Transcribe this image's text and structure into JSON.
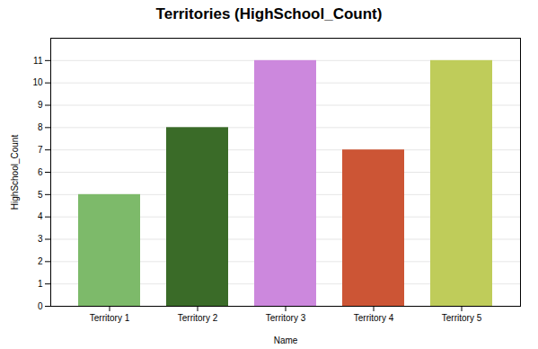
{
  "chart_data": {
    "type": "bar",
    "title": "Territories (HighSchool_Count)",
    "xlabel": "Name",
    "ylabel": "HighSchool_Count",
    "categories": [
      "Territory 1",
      "Territory 2",
      "Territory 3",
      "Territory 4",
      "Territory 5"
    ],
    "values": [
      5,
      8,
      11,
      7,
      11
    ],
    "colors": [
      "#7dba6a",
      "#3a6b28",
      "#cc88dd",
      "#cc5535",
      "#bfcc5a"
    ],
    "ylim": [
      0,
      12
    ],
    "yticks": [
      0,
      1,
      2,
      3,
      4,
      5,
      6,
      7,
      8,
      9,
      10,
      11
    ],
    "grid": true
  }
}
